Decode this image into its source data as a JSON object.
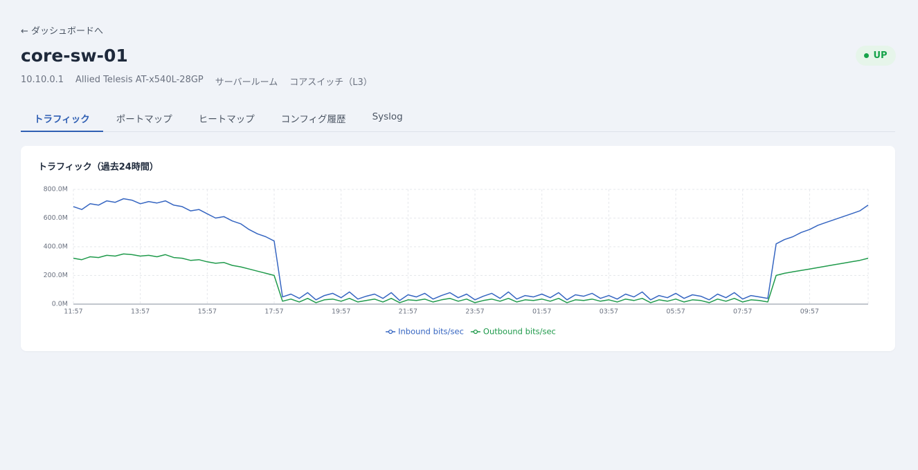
{
  "back_link": "← ダッシュボードへ",
  "device": {
    "name": "core-sw-01",
    "status": "UP",
    "ip": "10.10.0.1",
    "model": "Allied Telesis AT-x540L-28GP",
    "location": "サーバールーム",
    "role": "コアスイッチ（L3）"
  },
  "tabs": [
    "トラフィック",
    "ポートマップ",
    "ヒートマップ",
    "コンフィグ履歴",
    "Syslog"
  ],
  "active_tab": 0,
  "chart_data": {
    "type": "line",
    "title": "トラフィック（過去24時間）",
    "categories": [
      "11:57",
      null,
      null,
      null,
      null,
      null,
      null,
      null,
      "13:57",
      null,
      null,
      null,
      null,
      null,
      null,
      null,
      "15:57",
      null,
      null,
      null,
      null,
      null,
      null,
      null,
      "17:57",
      null,
      null,
      null,
      null,
      null,
      null,
      null,
      "19:57",
      null,
      null,
      null,
      null,
      null,
      null,
      null,
      "21:57",
      null,
      null,
      null,
      null,
      null,
      null,
      null,
      "23:57",
      null,
      null,
      null,
      null,
      null,
      null,
      null,
      "01:57",
      null,
      null,
      null,
      null,
      null,
      null,
      null,
      "03:57",
      null,
      null,
      null,
      null,
      null,
      null,
      null,
      "05:57",
      null,
      null,
      null,
      null,
      null,
      null,
      null,
      "07:57",
      null,
      null,
      null,
      null,
      null,
      null,
      null,
      "09:57",
      null,
      null,
      null,
      null,
      null,
      null,
      null
    ],
    "series": [
      {
        "name": "Inbound bits/sec",
        "color": "#3565c1",
        "values": [
          680,
          660,
          700,
          690,
          720,
          710,
          735,
          725,
          700,
          715,
          705,
          720,
          690,
          680,
          650,
          660,
          630,
          600,
          610,
          580,
          560,
          520,
          490,
          470,
          440,
          50,
          70,
          40,
          80,
          30,
          60,
          75,
          45,
          85,
          35,
          55,
          70,
          40,
          80,
          25,
          65,
          50,
          75,
          35,
          60,
          80,
          45,
          70,
          30,
          55,
          75,
          40,
          85,
          35,
          60,
          50,
          70,
          45,
          80,
          30,
          65,
          55,
          75,
          40,
          60,
          35,
          70,
          50,
          85,
          30,
          60,
          45,
          75,
          40,
          65,
          55,
          30,
          70,
          45,
          80,
          35,
          60,
          50,
          40,
          420,
          450,
          470,
          500,
          520,
          550,
          570,
          590,
          610,
          630,
          650,
          690
        ]
      },
      {
        "name": "Outbound bits/sec",
        "color": "#1f9a4b",
        "values": [
          320,
          310,
          330,
          325,
          340,
          335,
          350,
          345,
          335,
          340,
          330,
          345,
          325,
          320,
          305,
          310,
          295,
          285,
          290,
          270,
          260,
          245,
          230,
          215,
          200,
          20,
          35,
          15,
          40,
          10,
          30,
          35,
          20,
          40,
          15,
          25,
          35,
          15,
          40,
          10,
          30,
          25,
          35,
          15,
          30,
          40,
          20,
          35,
          10,
          25,
          35,
          20,
          40,
          15,
          30,
          25,
          35,
          20,
          40,
          10,
          30,
          25,
          35,
          20,
          30,
          15,
          35,
          25,
          40,
          10,
          30,
          20,
          35,
          15,
          30,
          25,
          10,
          35,
          20,
          40,
          15,
          30,
          25,
          15,
          200,
          215,
          225,
          235,
          245,
          255,
          265,
          275,
          285,
          295,
          305,
          320
        ]
      }
    ],
    "ylim": [
      0,
      800
    ],
    "yticks": [
      {
        "value": 0,
        "label": "0.0M"
      },
      {
        "value": 200,
        "label": "200.0M"
      },
      {
        "value": 400,
        "label": "400.0M"
      },
      {
        "value": 600,
        "label": "600.0M"
      },
      {
        "value": 800,
        "label": "800.0M"
      }
    ],
    "grid": true,
    "legend": "bottom"
  }
}
